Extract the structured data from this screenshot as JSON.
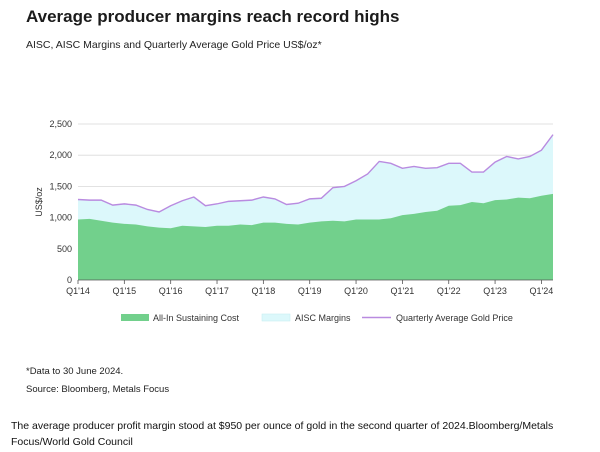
{
  "title": "Average producer margins reach record highs",
  "subtitle": "AISC, AISC Margins and Quarterly Average Gold Price US$/oz*",
  "footnote": "*Data to 30 June 2024.",
  "source": "Source: Bloomberg, Metals Focus",
  "caption": "The average producer profit margin stood at $950 per ounce of gold in the second quarter of 2024.Bloomberg/Metals Focus/World Gold Council",
  "colors": {
    "aisc": "#72d08c",
    "margin": "#dcf8fb",
    "gold_price": "#b98be0",
    "grid": "#d9d9d9"
  },
  "chart_data": {
    "type": "area",
    "ylabel": "US$/oz",
    "ylim": [
      0,
      2500
    ],
    "yticks": [
      0,
      500,
      1000,
      1500,
      2000,
      2500
    ],
    "ytick_labels": [
      "0",
      "500",
      "1,000",
      "1,500",
      "2,000",
      "2,500"
    ],
    "xtick_labels": [
      "Q1'14",
      "Q1'15",
      "Q1'16",
      "Q1'17",
      "Q1'18",
      "Q1'19",
      "Q1'20",
      "Q1'21",
      "Q1'22",
      "Q1'23",
      "Q1'24"
    ],
    "grid": true,
    "legend_position": "bottom",
    "x": [
      "Q1'14",
      "Q2'14",
      "Q3'14",
      "Q4'14",
      "Q1'15",
      "Q2'15",
      "Q3'15",
      "Q4'15",
      "Q1'16",
      "Q2'16",
      "Q3'16",
      "Q4'16",
      "Q1'17",
      "Q2'17",
      "Q3'17",
      "Q4'17",
      "Q1'18",
      "Q2'18",
      "Q3'18",
      "Q4'18",
      "Q1'19",
      "Q2'19",
      "Q3'19",
      "Q4'19",
      "Q1'20",
      "Q2'20",
      "Q3'20",
      "Q4'20",
      "Q1'21",
      "Q2'21",
      "Q3'21",
      "Q4'21",
      "Q1'22",
      "Q2'22",
      "Q3'22",
      "Q4'22",
      "Q1'23",
      "Q2'23",
      "Q3'23",
      "Q4'23",
      "Q1'24",
      "Q2'24"
    ],
    "series": [
      {
        "name": "All-In Sustaining Cost",
        "values": [
          970,
          980,
          950,
          920,
          900,
          890,
          860,
          840,
          830,
          870,
          860,
          850,
          870,
          870,
          890,
          880,
          920,
          920,
          900,
          890,
          920,
          940,
          950,
          940,
          970,
          970,
          970,
          990,
          1040,
          1060,
          1090,
          1110,
          1190,
          1200,
          1250,
          1230,
          1280,
          1290,
          1320,
          1310,
          1350,
          1380
        ]
      },
      {
        "name": "AISC Margins",
        "values": [
          320,
          300,
          330,
          280,
          320,
          310,
          270,
          250,
          360,
          400,
          470,
          340,
          350,
          390,
          380,
          400,
          410,
          380,
          310,
          340,
          380,
          370,
          530,
          560,
          620,
          730,
          930,
          880,
          750,
          760,
          700,
          690,
          680,
          670,
          480,
          500,
          610,
          690,
          620,
          670,
          730,
          950
        ]
      },
      {
        "name": "Quarterly Average Gold Price",
        "values": [
          1290,
          1280,
          1280,
          1200,
          1220,
          1200,
          1130,
          1090,
          1190,
          1270,
          1330,
          1190,
          1220,
          1260,
          1270,
          1280,
          1330,
          1300,
          1210,
          1230,
          1300,
          1310,
          1480,
          1500,
          1590,
          1700,
          1900,
          1870,
          1790,
          1820,
          1790,
          1800,
          1870,
          1870,
          1730,
          1730,
          1890,
          1980,
          1940,
          1980,
          2080,
          2330
        ]
      }
    ]
  }
}
